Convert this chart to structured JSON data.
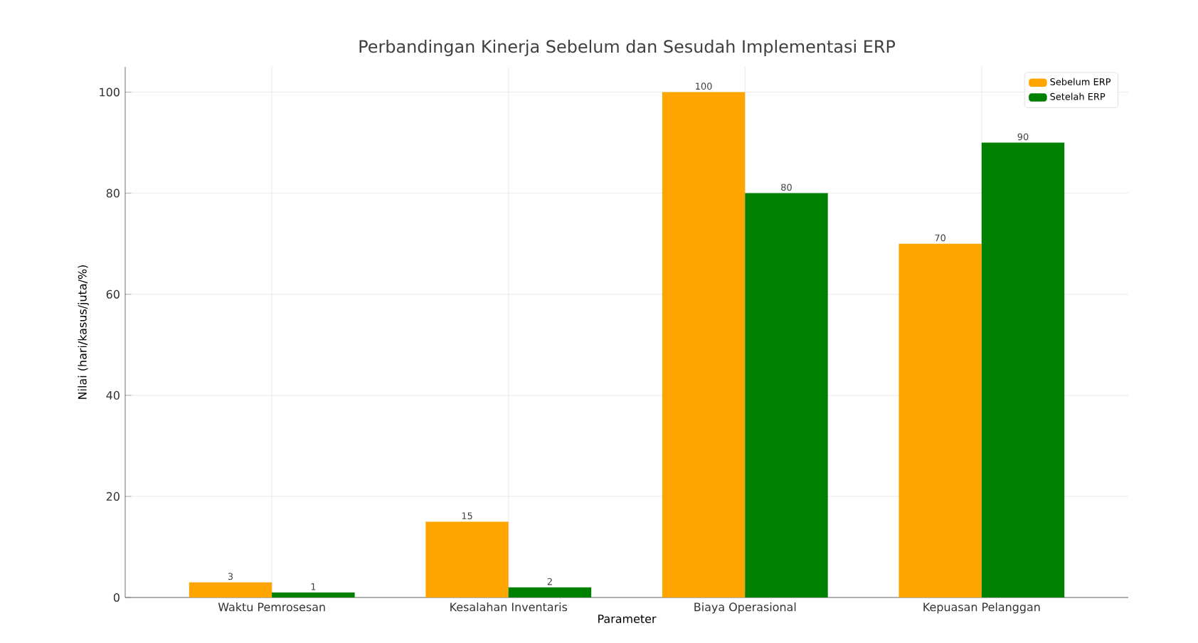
{
  "chart_data": {
    "type": "bar",
    "title": "Perbandingan Kinerja Sebelum dan Sesudah Implementasi ERP",
    "xlabel": "Parameter",
    "ylabel": "Nilai (hari/kasus/juta/%)",
    "categories": [
      "Waktu Pemrosesan",
      "Kesalahan Inventaris",
      "Biaya Operasional",
      "Kepuasan Pelanggan"
    ],
    "series": [
      {
        "name": "Sebelum ERP",
        "color": "#ffa500",
        "values": [
          3,
          15,
          100,
          70
        ]
      },
      {
        "name": "Setelah ERP",
        "color": "#008000",
        "values": [
          1,
          2,
          80,
          90
        ]
      }
    ],
    "ylim": [
      0,
      105
    ],
    "yticks": [
      0,
      20,
      40,
      60,
      80,
      100
    ],
    "grid": true,
    "legend": "top right",
    "data_labels": true
  }
}
